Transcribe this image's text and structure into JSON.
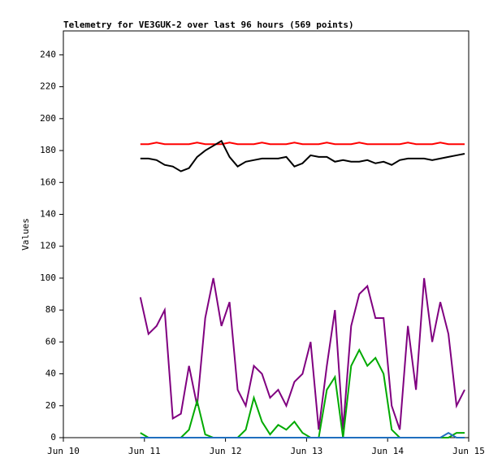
{
  "chart_data": {
    "type": "line",
    "title": "Telemetry for VE3GUK-2 over last 96 hours (569 points)",
    "y_label": "Values",
    "xlim": [
      0,
      5
    ],
    "xticks": [
      {
        "value": 0,
        "label": "Jun 10"
      },
      {
        "value": 1,
        "label": "Jun 11"
      },
      {
        "value": 2,
        "label": "Jun 12"
      },
      {
        "value": 3,
        "label": "Jun 13"
      },
      {
        "value": 4,
        "label": "Jun 14"
      },
      {
        "value": 5,
        "label": "Jun 15"
      }
    ],
    "ylim": [
      0,
      255
    ],
    "yticks": [
      0,
      20,
      40,
      60,
      80,
      100,
      120,
      140,
      160,
      180,
      200,
      220,
      240
    ],
    "grid": false,
    "x": [
      0.95,
      1.05,
      1.15,
      1.25,
      1.35,
      1.45,
      1.55,
      1.65,
      1.75,
      1.85,
      1.95,
      2.05,
      2.15,
      2.25,
      2.35,
      2.45,
      2.55,
      2.65,
      2.75,
      2.85,
      2.95,
      3.05,
      3.15,
      3.25,
      3.35,
      3.45,
      3.55,
      3.65,
      3.75,
      3.85,
      3.95,
      4.05,
      4.15,
      4.25,
      4.35,
      4.45,
      4.55,
      4.65,
      4.75,
      4.85,
      4.95
    ],
    "series": [
      {
        "color": "#ff0000",
        "values": [
          184,
          184,
          185,
          184,
          184,
          184,
          184,
          185,
          184,
          184,
          184,
          185,
          184,
          184,
          184,
          185,
          184,
          184,
          184,
          185,
          184,
          184,
          184,
          185,
          184,
          184,
          184,
          185,
          184,
          184,
          184,
          184,
          184,
          185,
          184,
          184,
          184,
          185,
          184,
          184,
          184
        ]
      },
      {
        "color": "#000000",
        "values": [
          175,
          175,
          174,
          171,
          170,
          167,
          169,
          176,
          180,
          183,
          186,
          176,
          170,
          173,
          174,
          175,
          175,
          175,
          176,
          170,
          172,
          177,
          176,
          176,
          173,
          174,
          173,
          173,
          174,
          172,
          173,
          171,
          174,
          175,
          175,
          175,
          174,
          175,
          176,
          177,
          178
        ]
      },
      {
        "color": "#800080",
        "values": [
          88,
          65,
          70,
          80,
          12,
          15,
          45,
          20,
          75,
          100,
          70,
          85,
          30,
          20,
          45,
          40,
          25,
          30,
          20,
          35,
          40,
          60,
          5,
          45,
          80,
          5,
          70,
          90,
          95,
          75,
          75,
          20,
          5,
          70,
          30,
          100,
          60,
          85,
          65,
          20,
          30
        ]
      },
      {
        "color": "#00aa00",
        "values": [
          3,
          0,
          0,
          0,
          0,
          0,
          5,
          23,
          2,
          0,
          0,
          0,
          0,
          5,
          25,
          10,
          2,
          8,
          5,
          10,
          3,
          0,
          0,
          30,
          38,
          0,
          45,
          55,
          45,
          50,
          40,
          5,
          0,
          0,
          0,
          0,
          0,
          0,
          0,
          3,
          3
        ]
      },
      {
        "color": "#1f6fbf",
        "values": [
          0,
          0,
          0,
          0,
          0,
          0,
          0,
          0,
          0,
          0,
          0,
          0,
          0,
          0,
          0,
          0,
          0,
          0,
          0,
          0,
          0,
          0,
          0,
          0,
          0,
          0,
          0,
          0,
          0,
          0,
          0,
          0,
          0,
          0,
          0,
          0,
          0,
          0,
          3,
          0,
          0
        ]
      }
    ]
  }
}
